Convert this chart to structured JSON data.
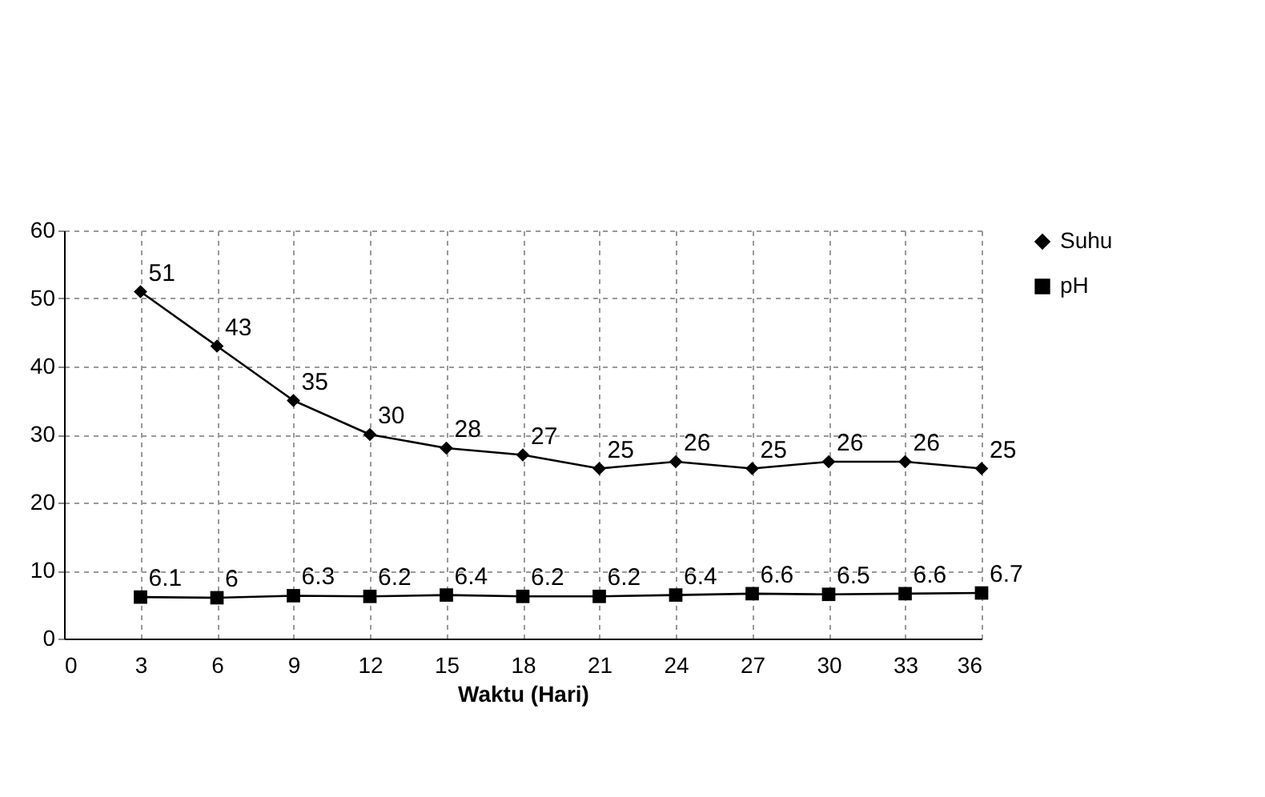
{
  "chart_data": {
    "type": "line",
    "xlabel": "Waktu (Hari)",
    "x": [
      3,
      6,
      9,
      12,
      15,
      18,
      21,
      24,
      27,
      30,
      33,
      36
    ],
    "series": [
      {
        "name": "Suhu",
        "color": "#000000",
        "marker": "diamond",
        "values": [
          51,
          43,
          35,
          30,
          28,
          27,
          25,
          26,
          25,
          26,
          26,
          25
        ]
      },
      {
        "name": "pH",
        "color": "#000000",
        "marker": "square",
        "values": [
          6.1,
          6,
          6.3,
          6.2,
          6.4,
          6.2,
          6.2,
          6.4,
          6.6,
          6.5,
          6.6,
          6.7
        ]
      }
    ],
    "xlim": [
      0,
      36
    ],
    "xticks": [
      0,
      3,
      6,
      9,
      12,
      15,
      18,
      21,
      24,
      27,
      30,
      33,
      36
    ],
    "ylim": [
      0,
      60
    ],
    "yticks": [
      0,
      10,
      20,
      30,
      40,
      50,
      60
    ],
    "grid": true,
    "legend": "right",
    "data_labels": true,
    "line_style": "solid"
  }
}
